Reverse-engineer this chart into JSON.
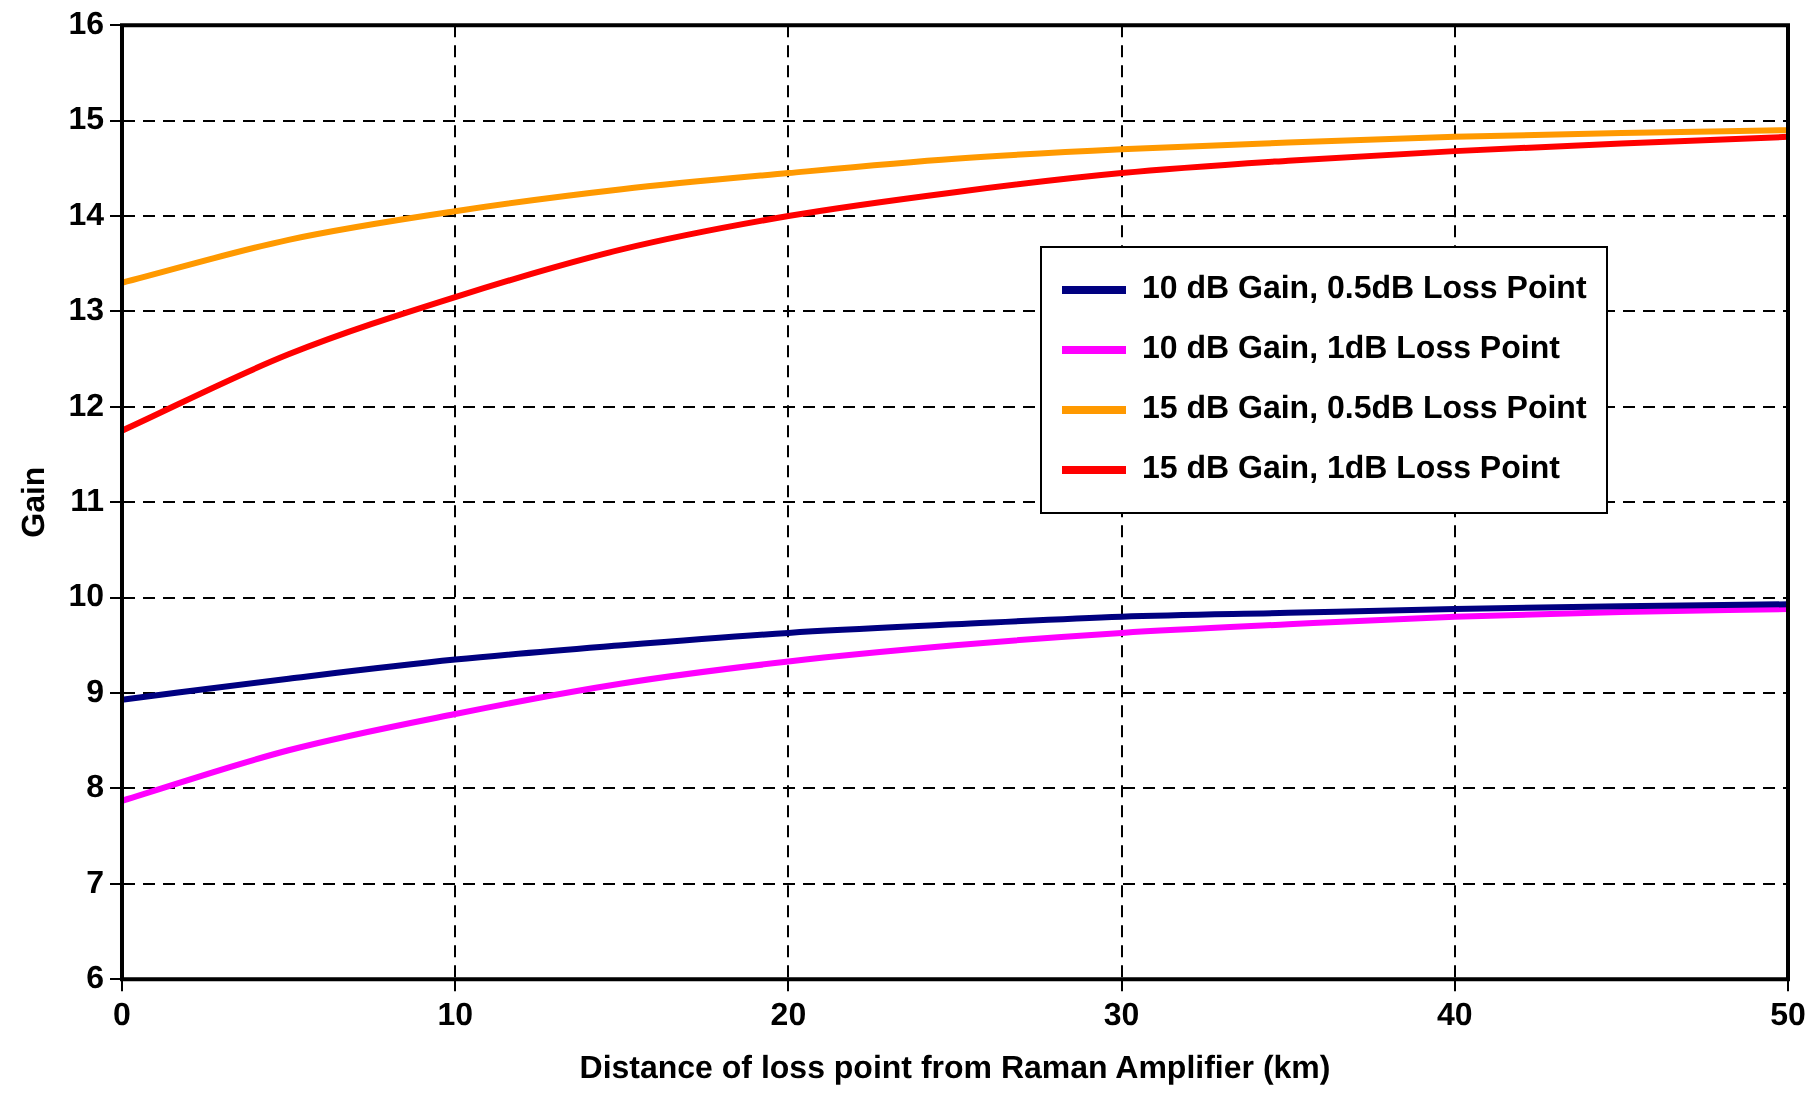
{
  "chart_data": {
    "type": "line",
    "xlabel": "Distance of loss point from Raman Amplifier (km)",
    "ylabel": "Gain",
    "x": [
      0,
      5,
      10,
      15,
      20,
      25,
      30,
      35,
      40,
      45,
      50
    ],
    "series": [
      {
        "name": "10 dB Gain, 0.5dB Loss Point",
        "color": "#000080",
        "values": [
          8.93,
          9.15,
          9.35,
          9.5,
          9.63,
          9.72,
          9.8,
          9.84,
          9.88,
          9.91,
          9.93
        ]
      },
      {
        "name": "10 dB Gain, 1dB Loss Point",
        "color": "#ff00ff",
        "values": [
          7.87,
          8.4,
          8.78,
          9.1,
          9.33,
          9.5,
          9.63,
          9.72,
          9.8,
          9.85,
          9.88
        ]
      },
      {
        "name": "15 dB Gain, 0.5dB Loss Point",
        "color": "#ff9900",
        "values": [
          13.3,
          13.75,
          14.05,
          14.28,
          14.45,
          14.6,
          14.7,
          14.77,
          14.83,
          14.87,
          14.9
        ]
      },
      {
        "name": "15 dB Gain, 1dB Loss Point",
        "color": "#ff0000",
        "values": [
          11.75,
          12.55,
          13.15,
          13.65,
          14.0,
          14.25,
          14.45,
          14.58,
          14.68,
          14.76,
          14.83
        ]
      }
    ],
    "xlim": [
      0,
      50
    ],
    "xticks": [
      0,
      10,
      20,
      30,
      40,
      50
    ],
    "ylim": [
      6,
      16
    ],
    "yticks": [
      6,
      7,
      8,
      9,
      10,
      11,
      12,
      13,
      14,
      15,
      16
    ],
    "grid": true,
    "legend": "top right",
    "marker": "none",
    "line_style": "solid"
  }
}
